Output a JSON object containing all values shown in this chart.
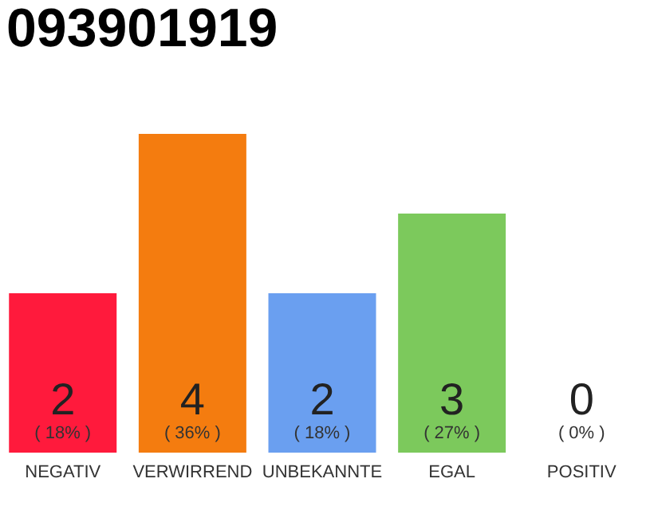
{
  "chart_data": {
    "type": "bar",
    "title": "093901919",
    "categories": [
      "NEGATIV",
      "VERWIRREND",
      "UNBEKANNTE",
      "EGAL",
      "POSITIV"
    ],
    "values": [
      2,
      4,
      2,
      3,
      0
    ],
    "colors": [
      "#ff1a3c",
      "#f47c0f",
      "#6a9ff0",
      "#7cc95c",
      "#cccccc"
    ],
    "data_labels": true,
    "annotations": [
      "( 18% )",
      "( 36% )",
      "( 18% )",
      "( 27% )",
      "( 0% )"
    ],
    "grid": false
  }
}
